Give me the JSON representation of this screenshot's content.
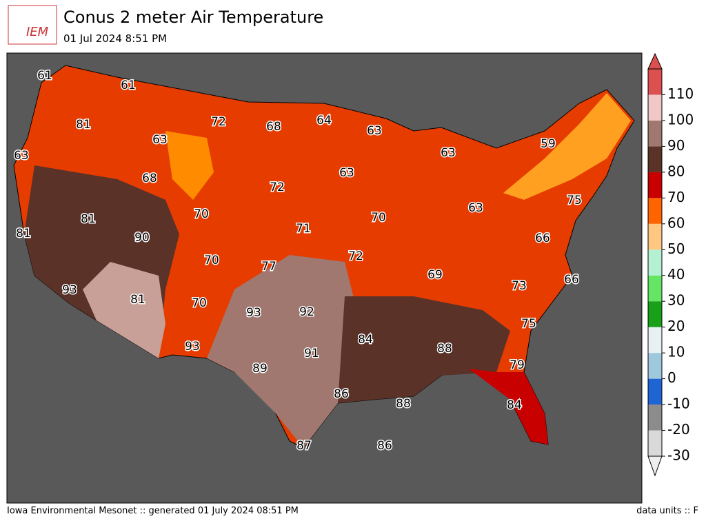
{
  "header": {
    "logo": "IEM",
    "title": "Conus 2 meter Air Temperature",
    "subtitle": "01 Jul 2024 8:51 PM"
  },
  "map": {
    "labels": [
      61,
      61,
      81,
      63,
      63,
      72,
      68,
      64,
      63,
      63,
      59,
      68,
      63,
      72,
      81,
      90,
      81,
      70,
      71,
      70,
      63,
      75,
      66,
      70,
      77,
      72,
      69,
      73,
      66,
      93,
      81,
      70,
      93,
      92,
      75,
      84,
      88,
      93,
      91,
      89,
      79,
      86,
      88,
      84,
      87,
      86
    ]
  },
  "colorbar": {
    "lim": [
      -30,
      120
    ],
    "ticks": [
      -30,
      -20,
      -10,
      0,
      10,
      20,
      30,
      40,
      50,
      60,
      70,
      80,
      90,
      100,
      110
    ],
    "colors": [
      "#d9d9d9",
      "#8c8c8c",
      "#1e64d2",
      "#a0c8dc",
      "#e8f0f4",
      "#18a018",
      "#64e664",
      "#b4f0d2",
      "#ffc882",
      "#ff6400",
      "#c80000",
      "#5a3228",
      "#a07870",
      "#f0c8c8",
      "#dc5050"
    ]
  },
  "footer": {
    "left": "Iowa Environmental Mesonet :: generated 01 July 2024 08:51 PM",
    "right": "data units :: F"
  }
}
